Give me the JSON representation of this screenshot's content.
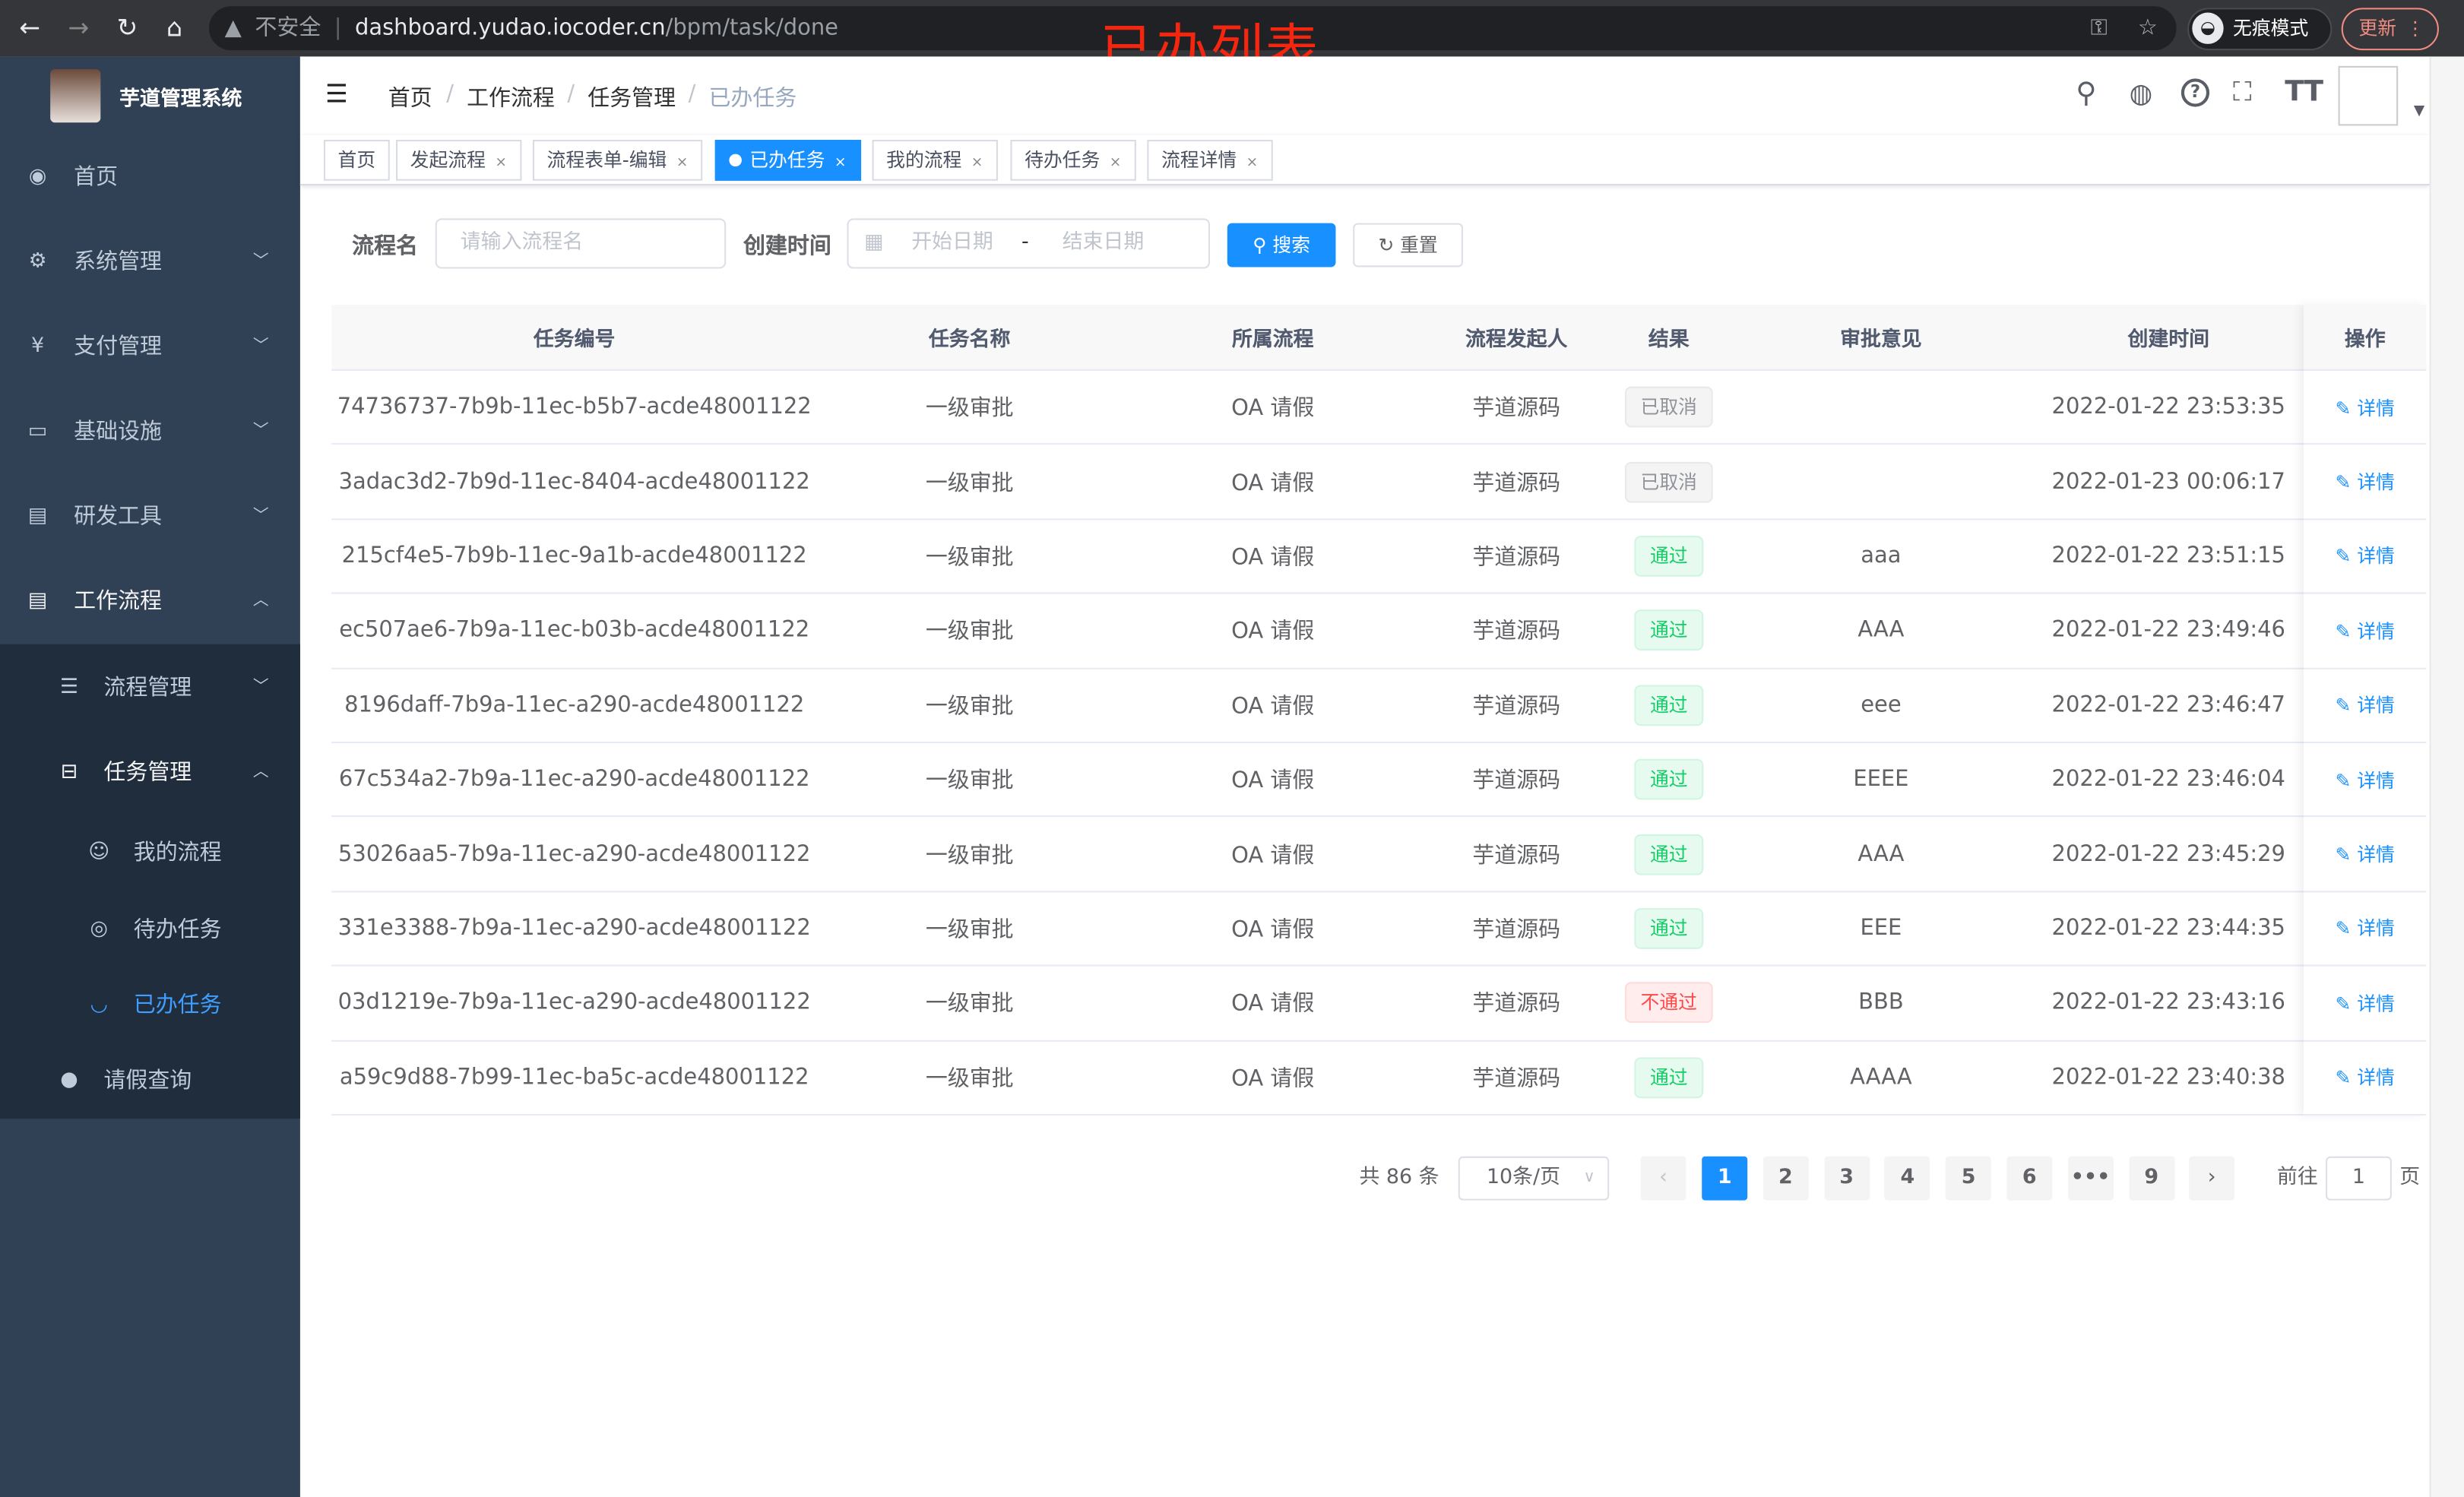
{
  "browser": {
    "security": "不安全",
    "url_host": "dashboard.yudao.iocoder.cn",
    "url_path": "/bpm/task/done",
    "incognito": "无痕模式",
    "update": "更新"
  },
  "overlay_title": "已办列表",
  "app": {
    "name": "芋道管理系统"
  },
  "sidebar": {
    "items": [
      {
        "label": "首页",
        "icon": "dashboard-icon"
      },
      {
        "label": "系统管理",
        "icon": "gear-icon"
      },
      {
        "label": "支付管理",
        "icon": "yen-icon"
      },
      {
        "label": "基础设施",
        "icon": "monitor-icon"
      },
      {
        "label": "研发工具",
        "icon": "toolbox-icon"
      },
      {
        "label": "工作流程",
        "icon": "toolbox-icon"
      }
    ],
    "sub": [
      {
        "label": "流程管理"
      },
      {
        "label": "任务管理"
      }
    ],
    "sub2": [
      {
        "label": "我的流程"
      },
      {
        "label": "待办任务"
      },
      {
        "label": "已办任务"
      }
    ],
    "leave": {
      "label": "请假查询"
    }
  },
  "breadcrumb": [
    "首页",
    "工作流程",
    "任务管理",
    "已办任务"
  ],
  "tags": [
    {
      "label": "首页"
    },
    {
      "label": "发起流程"
    },
    {
      "label": "流程表单-编辑"
    },
    {
      "label": "已办任务",
      "active": true
    },
    {
      "label": "我的流程"
    },
    {
      "label": "待办任务"
    },
    {
      "label": "流程详情"
    }
  ],
  "search": {
    "name_label": "流程名",
    "name_placeholder": "请输入流程名",
    "time_label": "创建时间",
    "start_placeholder": "开始日期",
    "sep": "-",
    "end_placeholder": "结束日期",
    "search_btn": "搜索",
    "reset_btn": "重置"
  },
  "colors": {
    "primary": "#1890ff",
    "sidebar": "#304156",
    "pass": "#13ce66",
    "fail": "#ff4949"
  },
  "table": {
    "headers": [
      "任务编号",
      "任务名称",
      "所属流程",
      "流程发起人",
      "结果",
      "审批意见",
      "创建时间",
      "操作"
    ],
    "rows": [
      {
        "id": "74736737-7b9b-11ec-b5b7-acde48001122",
        "name": "一级审批",
        "process": "OA 请假",
        "starter": "芋道源码",
        "result": "已取消",
        "status": "cancel",
        "comment": "",
        "time": "2022-01-22 23:53:35",
        "action": "详情"
      },
      {
        "id": "3adac3d2-7b9d-11ec-8404-acde48001122",
        "name": "一级审批",
        "process": "OA 请假",
        "starter": "芋道源码",
        "result": "已取消",
        "status": "cancel",
        "comment": "",
        "time": "2022-01-23 00:06:17",
        "action": "详情"
      },
      {
        "id": "215cf4e5-7b9b-11ec-9a1b-acde48001122",
        "name": "一级审批",
        "process": "OA 请假",
        "starter": "芋道源码",
        "result": "通过",
        "status": "pass",
        "comment": "aaa",
        "time": "2022-01-22 23:51:15",
        "action": "详情"
      },
      {
        "id": "ec507ae6-7b9a-11ec-b03b-acde48001122",
        "name": "一级审批",
        "process": "OA 请假",
        "starter": "芋道源码",
        "result": "通过",
        "status": "pass",
        "comment": "AAA",
        "time": "2022-01-22 23:49:46",
        "action": "详情"
      },
      {
        "id": "8196daff-7b9a-11ec-a290-acde48001122",
        "name": "一级审批",
        "process": "OA 请假",
        "starter": "芋道源码",
        "result": "通过",
        "status": "pass",
        "comment": "eee",
        "time": "2022-01-22 23:46:47",
        "action": "详情"
      },
      {
        "id": "67c534a2-7b9a-11ec-a290-acde48001122",
        "name": "一级审批",
        "process": "OA 请假",
        "starter": "芋道源码",
        "result": "通过",
        "status": "pass",
        "comment": "EEEE",
        "time": "2022-01-22 23:46:04",
        "action": "详情"
      },
      {
        "id": "53026aa5-7b9a-11ec-a290-acde48001122",
        "name": "一级审批",
        "process": "OA 请假",
        "starter": "芋道源码",
        "result": "通过",
        "status": "pass",
        "comment": "AAA",
        "time": "2022-01-22 23:45:29",
        "action": "详情"
      },
      {
        "id": "331e3388-7b9a-11ec-a290-acde48001122",
        "name": "一级审批",
        "process": "OA 请假",
        "starter": "芋道源码",
        "result": "通过",
        "status": "pass",
        "comment": "EEE",
        "time": "2022-01-22 23:44:35",
        "action": "详情"
      },
      {
        "id": "03d1219e-7b9a-11ec-a290-acde48001122",
        "name": "一级审批",
        "process": "OA 请假",
        "starter": "芋道源码",
        "result": "不通过",
        "status": "fail",
        "comment": "BBB",
        "time": "2022-01-22 23:43:16",
        "action": "详情"
      },
      {
        "id": "a59c9d88-7b99-11ec-ba5c-acde48001122",
        "name": "一级审批",
        "process": "OA 请假",
        "starter": "芋道源码",
        "result": "通过",
        "status": "pass",
        "comment": "AAAA",
        "time": "2022-01-22 23:40:38",
        "action": "详情"
      }
    ]
  },
  "pagination": {
    "total": "共 86 条",
    "page_size": "10条/页",
    "pages": [
      "1",
      "2",
      "3",
      "4",
      "5",
      "6",
      "•••",
      "9"
    ],
    "current": "1",
    "goto_label": "前往",
    "goto_value": "1",
    "page_unit": "页"
  }
}
